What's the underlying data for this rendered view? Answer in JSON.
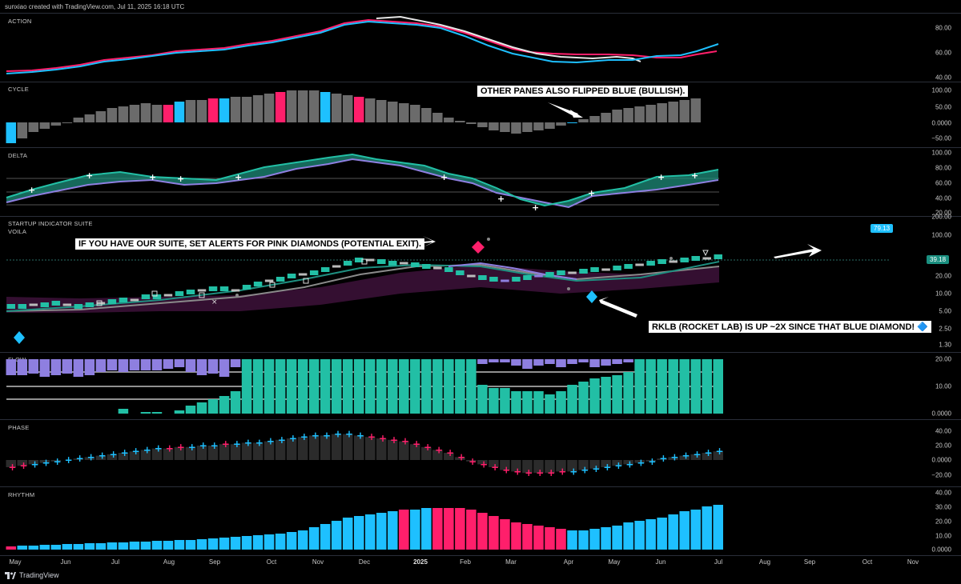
{
  "header": {
    "text": "sunxiao created with TradingView.com, Jul 11, 2025 16:18 UTC"
  },
  "colors": {
    "blue": "#1ec0ff",
    "pink": "#ff1f6b",
    "teal": "#22bfa5",
    "purple": "#8e7fe0",
    "gray": "#6b6b6b",
    "white": "#e6e6e6",
    "bg": "#000000"
  },
  "panes": {
    "action": {
      "label": "ACTION",
      "ticks": [
        "80.00",
        "60.00",
        "40.00"
      ]
    },
    "cycle": {
      "label": "CYCLE",
      "ticks": [
        "100.00",
        "50.00",
        "0.0000",
        "−50.00"
      ]
    },
    "delta": {
      "label": "DELTA",
      "ticks": [
        "100.00",
        "80.00",
        "60.00",
        "40.00",
        "20.00"
      ]
    },
    "suite": {
      "label": "STARTUP INDICATOR SUITE",
      "sublabel": "VOILA",
      "ticks": [
        "200.00",
        "100.00",
        "20.00",
        "10.00",
        "5.00",
        "2.50",
        "1.30"
      ],
      "badge_high": "79.13",
      "badge_last": "39.18"
    },
    "flow": {
      "label": "FLOW",
      "ticks": [
        "20.00",
        "10.00",
        "0.0000"
      ]
    },
    "phase": {
      "label": "PHASE",
      "ticks": [
        "40.00",
        "20.00",
        "0.0000",
        "−20.00"
      ]
    },
    "rhythm": {
      "label": "RHYTHM",
      "ticks": [
        "40.00",
        "30.00",
        "20.00",
        "10.00",
        "0.0000"
      ]
    }
  },
  "annotations": {
    "cycle_note": "OTHER PANES ALSO FLIPPED BLUE (BULLISH).",
    "suite_note": "IF YOU HAVE OUR SUITE, SET ALERTS FOR PINK DIAMONDS (POTENTIAL EXIT).",
    "rklb_note": "RKLB (ROCKET LAB) IS UP ~2X SINCE THAT BLUE DIAMOND! 🔷"
  },
  "time_axis": [
    "May",
    "Jun",
    "Jul",
    "Aug",
    "Sep",
    "Oct",
    "Nov",
    "Dec",
    "2025",
    "Feb",
    "Mar",
    "Apr",
    "May",
    "Jun",
    "Jul",
    "Aug",
    "Sep",
    "Oct",
    "Nov"
  ],
  "footer": {
    "brand": "TradingView"
  }
}
